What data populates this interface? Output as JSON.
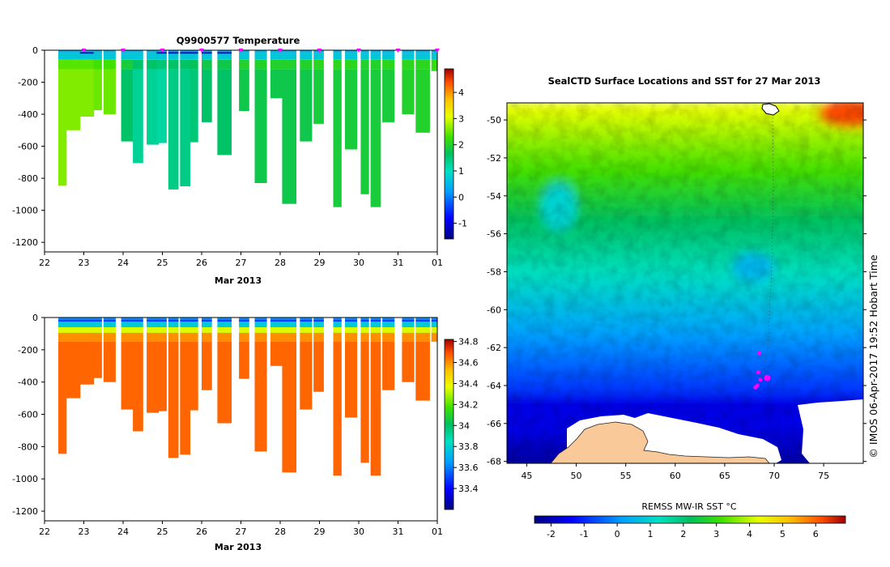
{
  "chart_data": [
    {
      "type": "heatmap",
      "title": "Q9900577  Temperature",
      "xlabel": "Mar 2013",
      "x_ticks": [
        "22",
        "23",
        "24",
        "25",
        "26",
        "27",
        "28",
        "29",
        "30",
        "31",
        "01"
      ],
      "y_ticks": [
        0,
        -200,
        -400,
        -600,
        -800,
        -1000,
        -1200
      ],
      "ylim": [
        -1260,
        0
      ],
      "colorbar": {
        "min": -1.6,
        "max": 4.9,
        "ticks": [
          -1,
          0,
          1,
          2,
          3,
          4
        ]
      },
      "profile_markers_days": [
        23,
        24,
        25,
        26,
        27,
        28,
        29,
        30,
        31,
        32
      ],
      "profiles": [
        {
          "day": 22.35,
          "width": 0.2,
          "depth": -845,
          "deep": 2.6,
          "mid": 2.4,
          "surf": 0.4,
          "cold": 0
        },
        {
          "day": 22.55,
          "width": 0.35,
          "depth": -500,
          "deep": 2.6,
          "mid": 2.4,
          "surf": 0.4,
          "cold": 0
        },
        {
          "day": 22.9,
          "width": 0.35,
          "depth": -415,
          "deep": 2.6,
          "mid": 2.4,
          "surf": 0.5,
          "cold": 1
        },
        {
          "day": 23.25,
          "width": 0.2,
          "depth": -375,
          "deep": 2.5,
          "mid": 2.3,
          "surf": 0.5,
          "cold": 0
        },
        {
          "day": 23.5,
          "width": 0.3,
          "depth": -400,
          "deep": 2.5,
          "mid": 2.3,
          "surf": 0.5,
          "cold": 0
        },
        {
          "day": 23.95,
          "width": 0.3,
          "depth": -570,
          "deep": 1.6,
          "mid": 1.9,
          "surf": 0.5,
          "cold": 0
        },
        {
          "day": 24.25,
          "width": 0.25,
          "depth": -705,
          "deep": 1.3,
          "mid": 1.6,
          "surf": 0.5,
          "cold": 0
        },
        {
          "day": 24.6,
          "width": 0.3,
          "depth": -590,
          "deep": 1.3,
          "mid": 1.6,
          "surf": 0.5,
          "cold": 0
        },
        {
          "day": 24.85,
          "width": 0.25,
          "depth": -580,
          "deep": 1.2,
          "mid": 1.5,
          "surf": 0.4,
          "cold": 1
        },
        {
          "day": 25.15,
          "width": 0.25,
          "depth": -870,
          "deep": 1.4,
          "mid": 1.6,
          "surf": 0.3,
          "cold": 1
        },
        {
          "day": 25.45,
          "width": 0.25,
          "depth": -850,
          "deep": 1.4,
          "mid": 1.6,
          "surf": 0.3,
          "cold": 1
        },
        {
          "day": 25.7,
          "width": 0.2,
          "depth": -575,
          "deep": 1.5,
          "mid": 1.7,
          "surf": 0.3,
          "cold": 1
        },
        {
          "day": 26.0,
          "width": 0.25,
          "depth": -450,
          "deep": 1.6,
          "mid": 1.8,
          "surf": 0.3,
          "cold": 1
        },
        {
          "day": 26.4,
          "width": 0.35,
          "depth": -655,
          "deep": 1.6,
          "mid": 1.8,
          "surf": 0.3,
          "cold": 1
        },
        {
          "day": 26.95,
          "width": 0.25,
          "depth": -380,
          "deep": 1.8,
          "mid": 2.0,
          "surf": 0.4,
          "cold": 0
        },
        {
          "day": 27.35,
          "width": 0.3,
          "depth": -830,
          "deep": 1.8,
          "mid": 2.0,
          "surf": 0.4,
          "cold": 0
        },
        {
          "day": 27.75,
          "width": 0.3,
          "depth": -300,
          "deep": 1.8,
          "mid": 2.0,
          "surf": 0.4,
          "cold": 0
        },
        {
          "day": 28.05,
          "width": 0.35,
          "depth": -960,
          "deep": 1.8,
          "mid": 2.0,
          "surf": 0.4,
          "cold": 0
        },
        {
          "day": 28.5,
          "width": 0.3,
          "depth": -570,
          "deep": 1.8,
          "mid": 2.0,
          "surf": 0.4,
          "cold": 0
        },
        {
          "day": 28.85,
          "width": 0.25,
          "depth": -460,
          "deep": 1.9,
          "mid": 2.1,
          "surf": 0.4,
          "cold": 0
        },
        {
          "day": 29.35,
          "width": 0.2,
          "depth": -980,
          "deep": 1.9,
          "mid": 2.1,
          "surf": 0.4,
          "cold": 0
        },
        {
          "day": 29.65,
          "width": 0.3,
          "depth": -620,
          "deep": 1.9,
          "mid": 2.1,
          "surf": 0.4,
          "cold": 0
        },
        {
          "day": 30.05,
          "width": 0.2,
          "depth": -900,
          "deep": 1.9,
          "mid": 2.0,
          "surf": 0.4,
          "cold": 0
        },
        {
          "day": 30.3,
          "width": 0.25,
          "depth": -980,
          "deep": 1.9,
          "mid": 2.0,
          "surf": 0.4,
          "cold": 0
        },
        {
          "day": 30.6,
          "width": 0.3,
          "depth": -450,
          "deep": 1.9,
          "mid": 2.1,
          "surf": 0.4,
          "cold": 0
        },
        {
          "day": 31.1,
          "width": 0.3,
          "depth": -400,
          "deep": 2.0,
          "mid": 2.1,
          "surf": 0.4,
          "cold": 0
        },
        {
          "day": 31.45,
          "width": 0.35,
          "depth": -515,
          "deep": 2.0,
          "mid": 2.1,
          "surf": 0.4,
          "cold": 0
        },
        {
          "day": 31.85,
          "width": 0.25,
          "depth": -130,
          "deep": 2.1,
          "mid": 2.2,
          "surf": 0.4,
          "cold": 0
        },
        {
          "day": 32.02,
          "width": 0.1,
          "depth": -380,
          "deep": 2.1,
          "mid": 2.2,
          "surf": 0.4,
          "cold": 0
        }
      ]
    },
    {
      "type": "heatmap",
      "title": "",
      "xlabel": "Mar 2013",
      "x_ticks": [
        "22",
        "23",
        "24",
        "25",
        "26",
        "27",
        "28",
        "29",
        "30",
        "31",
        "01"
      ],
      "y_ticks": [
        0,
        -200,
        -400,
        -600,
        -800,
        -1000,
        -1200
      ],
      "ylim": [
        -1260,
        0
      ],
      "colorbar": {
        "min": 33.2,
        "max": 34.82,
        "ticks": [
          "33.4",
          "33.6",
          "33.8",
          "34",
          "34.2",
          "34.4",
          "34.6",
          "34.8"
        ]
      },
      "profiles_ref": 0
    },
    {
      "type": "heatmap",
      "title": "SealCTD Surface Locations and SST for 27 Mar 2013",
      "xlabel": "",
      "ylabel": "",
      "x_ticks": [
        45,
        50,
        55,
        60,
        65,
        70,
        75
      ],
      "y_ticks": [
        -50,
        -52,
        -54,
        -56,
        -58,
        -60,
        -62,
        -64,
        -66,
        -68
      ],
      "xlim": [
        43,
        79
      ],
      "ylim": [
        -68.1,
        -49.1
      ],
      "colorbar": {
        "title": "REMSS MW-IR SST °C",
        "min": -2.5,
        "max": 6.9,
        "ticks": [
          -2,
          -1,
          0,
          1,
          2,
          3,
          4,
          5,
          6
        ]
      },
      "seal_locations": [
        [
          68.5,
          -62.3
        ],
        [
          68.4,
          -63.3
        ],
        [
          68.6,
          -63.7
        ],
        [
          69.3,
          -63.6
        ],
        [
          68.3,
          -64.0
        ],
        [
          68.1,
          -64.1
        ]
      ],
      "track_lon": 69.8
    }
  ],
  "credit": "© IMOS 06-Apr-2017 19:52 Hobart Time",
  "colors": {
    "land": "#f9c99a",
    "marker": "#ff00ff"
  }
}
